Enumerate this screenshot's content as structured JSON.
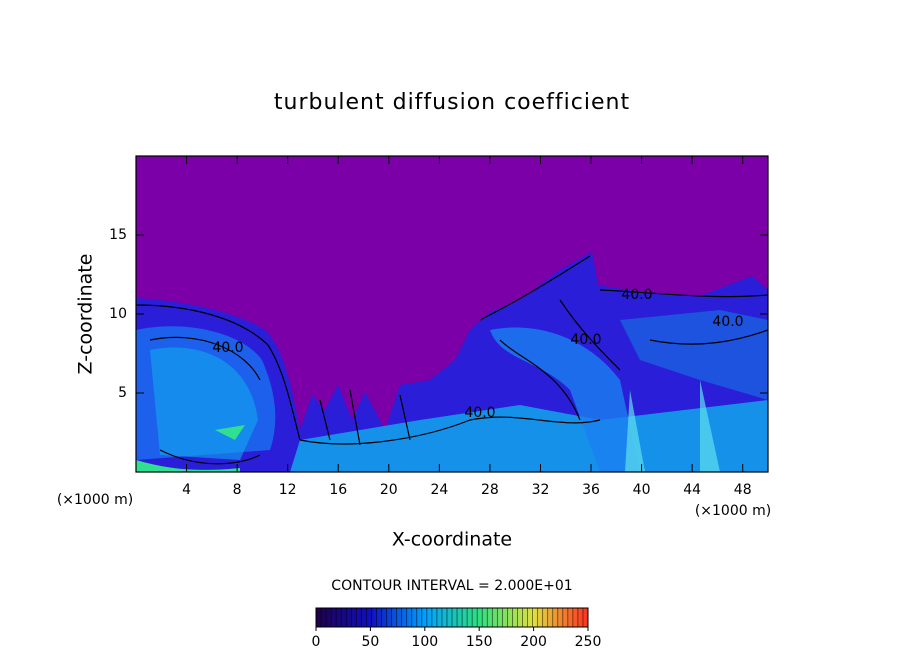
{
  "chart_data": {
    "type": "contour",
    "title": "turbulent diffusion coefficient",
    "xlabel": "X-coordinate",
    "ylabel": "Z-coordinate",
    "x_unit_labels": [
      "(×1000 m)",
      "(×1000 m)"
    ],
    "xlim": [
      0,
      50
    ],
    "ylim": [
      0,
      20
    ],
    "xticks": [
      4,
      8,
      12,
      16,
      20,
      24,
      28,
      32,
      36,
      40,
      44,
      48
    ],
    "yticks": [
      5,
      10,
      15
    ],
    "contour_labels": [
      {
        "value": 40,
        "label": "40.0"
      },
      {
        "value": 40,
        "label": "40.0"
      },
      {
        "value": 40,
        "label": "40.0"
      },
      {
        "value": 40,
        "label": "40.0"
      },
      {
        "value": 40,
        "label": "40.0"
      }
    ],
    "contour_interval_label": "CONTOUR INTERVAL = 2.000E+01",
    "clim": [
      0,
      250
    ],
    "cticks": [
      0,
      50,
      100,
      150,
      200,
      250
    ],
    "colormap": [
      "#20004a",
      "#1010c0",
      "#00a0ff",
      "#30e080",
      "#e0e040",
      "#ff3020"
    ]
  }
}
